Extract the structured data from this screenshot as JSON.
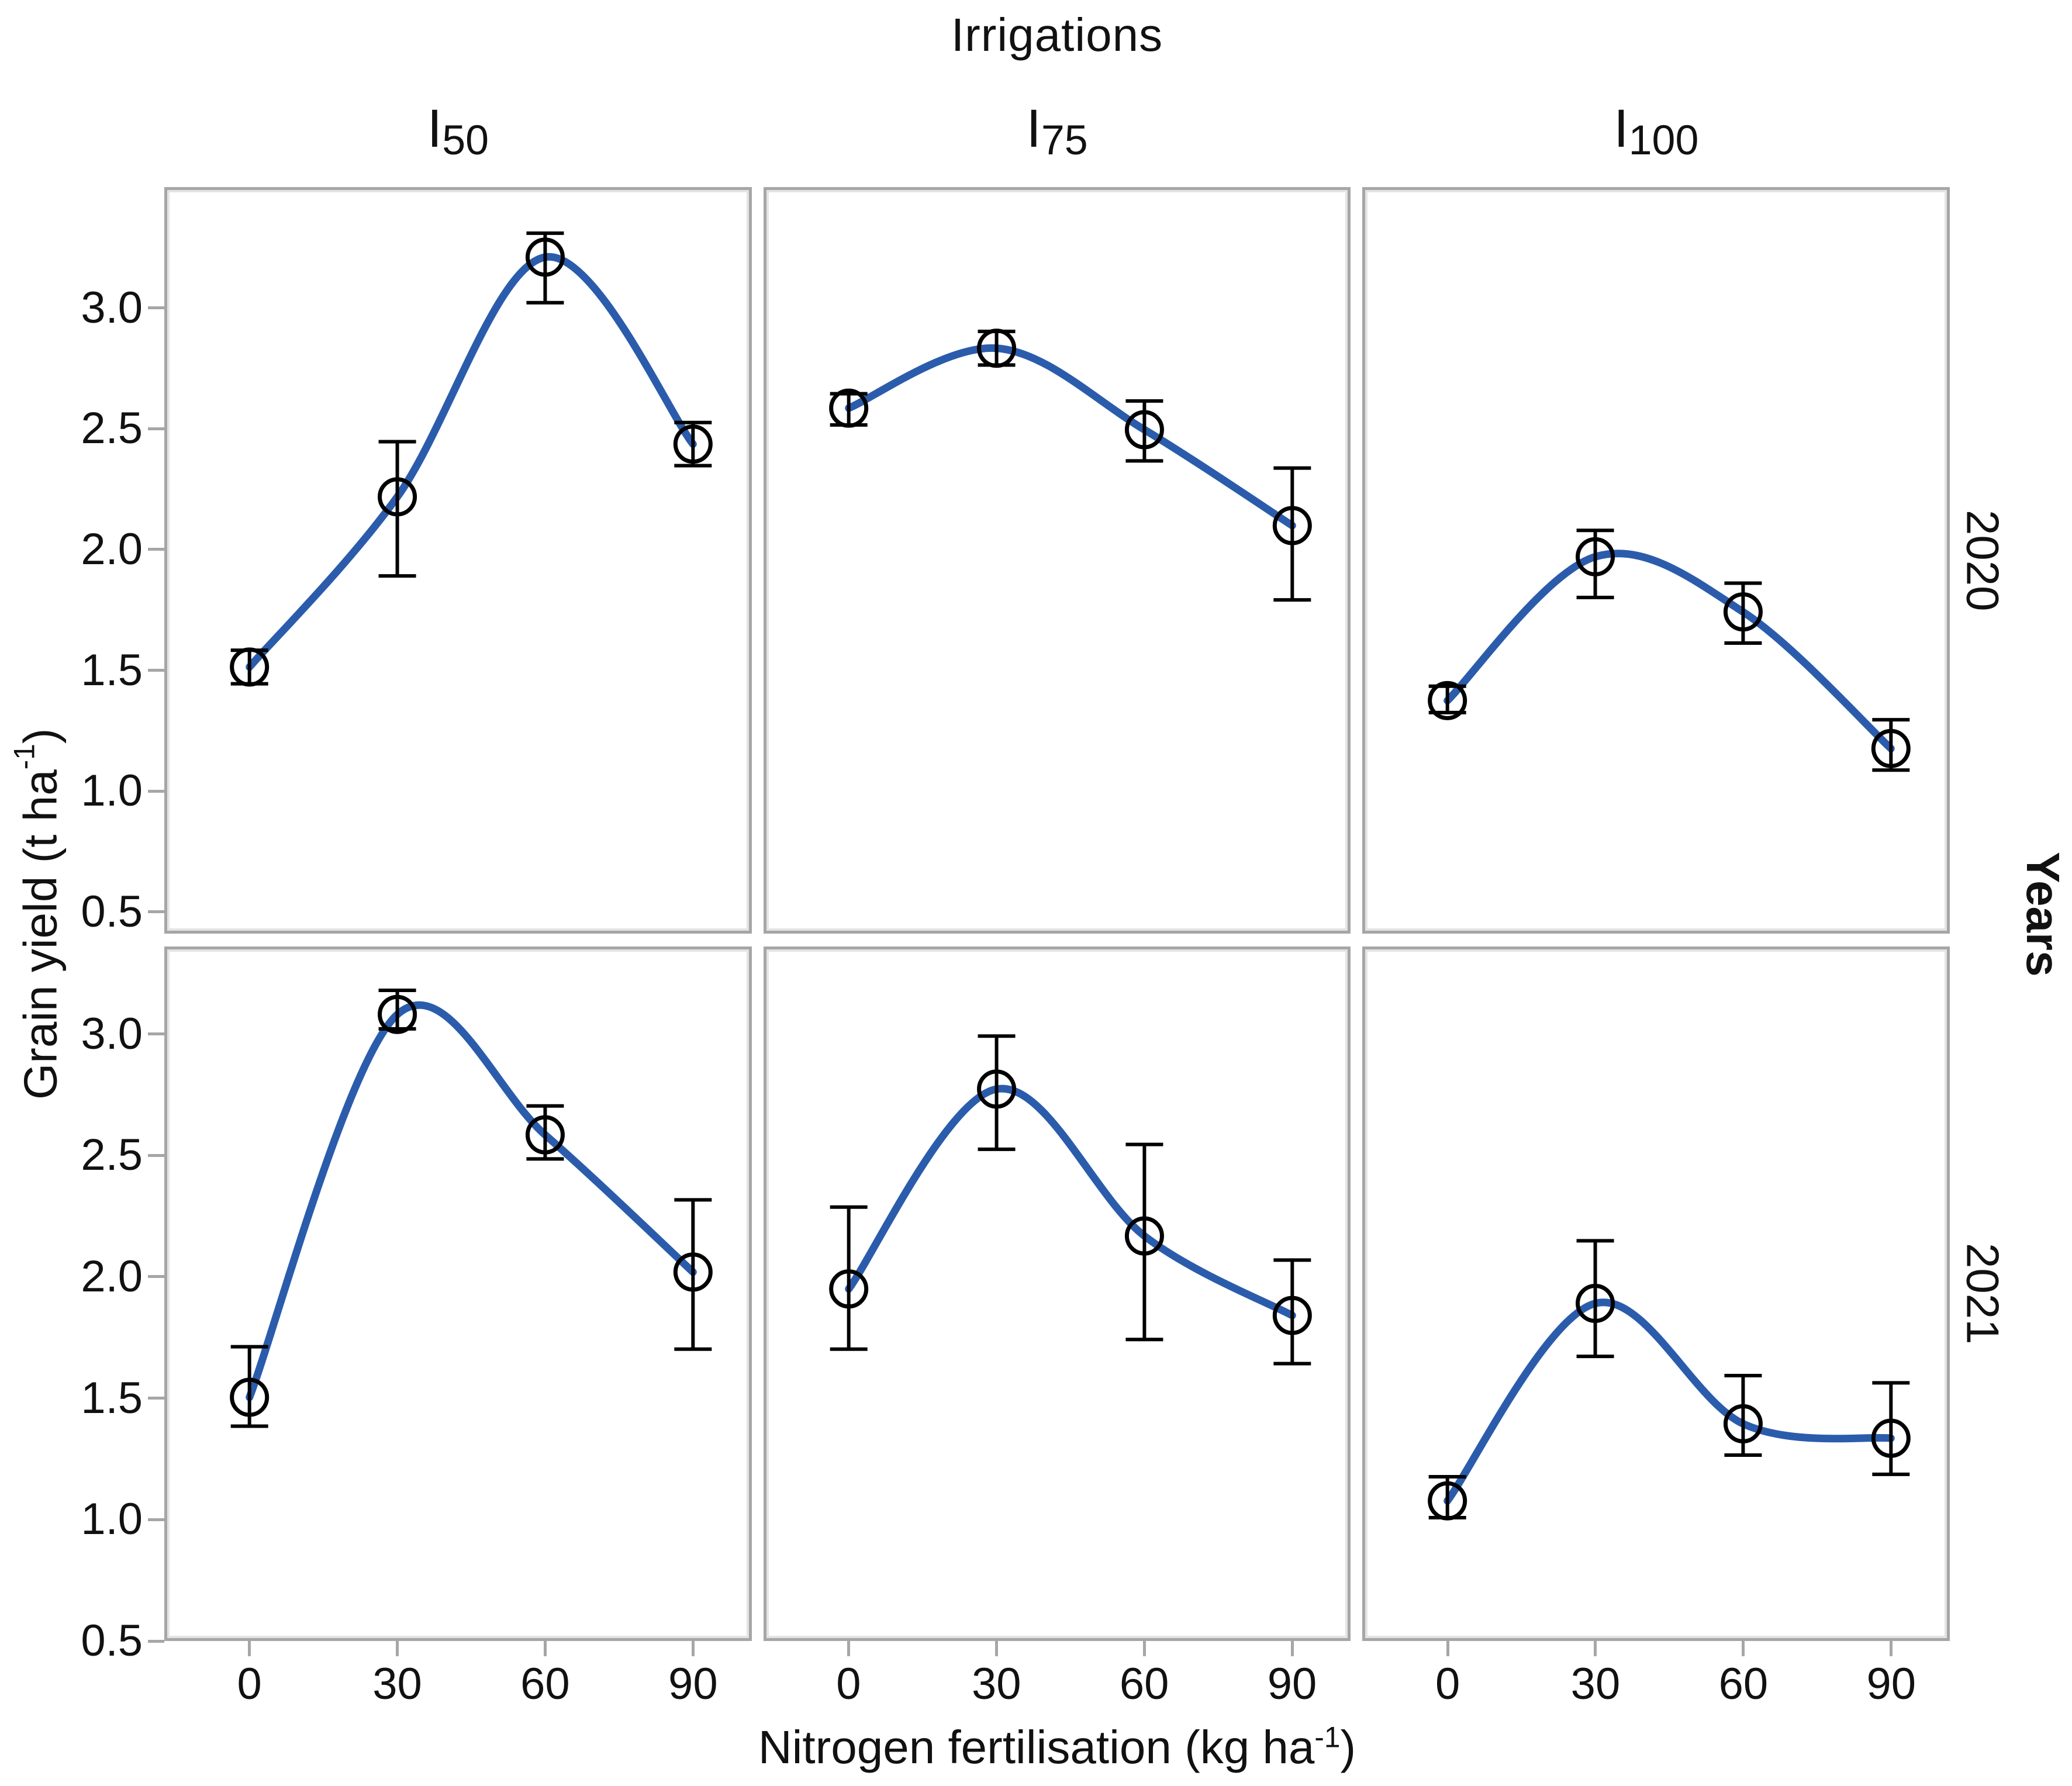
{
  "title": "Irrigations",
  "years_axis_label": "Years",
  "y_axis_title": {
    "base": "Grain yield (t ha",
    "sup": "-1",
    "close": ")"
  },
  "x_axis_title": {
    "base": "Nitrogen fertilisation (kg ha",
    "sup": "-1",
    "close": ")"
  },
  "colors": {
    "curve": "#2B5CAC",
    "marker": "#000000",
    "error_bar": "#000000",
    "panel_border": "#A6A6A6",
    "tick": "#A6A6A6",
    "text": "#111111"
  },
  "chart_data": {
    "type": "line",
    "title": "Irrigations",
    "xlabel": "Nitrogen fertilisation (kg ha-1)",
    "ylabel": "Grain yield (t ha-1)",
    "legend": "none",
    "grid_lines": "off",
    "marker_style": "open-circle",
    "error_bars": true,
    "x": [
      0,
      30,
      60,
      90
    ],
    "x_tick_labels": [
      "0",
      "30",
      "60",
      "90"
    ],
    "y_tick_labels": [
      "3.0",
      "2.5",
      "2.0",
      "1.5",
      "1.0",
      "0.5"
    ],
    "y_tick_values": [
      3.0,
      2.5,
      2.0,
      1.5,
      1.0,
      0.5
    ],
    "facet_cols": [
      {
        "id": "I50",
        "prefix": "I",
        "sub": "50"
      },
      {
        "id": "I75",
        "prefix": "I",
        "sub": "75"
      },
      {
        "id": "I100",
        "prefix": "I",
        "sub": "100"
      }
    ],
    "facet_rows": [
      {
        "year": "2020",
        "ylim": [
          0.41,
          3.5
        ]
      },
      {
        "year": "2021",
        "ylim": [
          0.5,
          3.36
        ]
      }
    ],
    "series": [
      {
        "row": "2020",
        "col": "I50",
        "y": [
          1.51,
          2.22,
          3.22,
          2.44
        ],
        "err_low": [
          1.44,
          1.89,
          3.03,
          2.35
        ],
        "err_high": [
          1.58,
          2.45,
          3.32,
          2.53
        ]
      },
      {
        "row": "2020",
        "col": "I75",
        "y": [
          2.59,
          2.84,
          2.5,
          2.1
        ],
        "err_low": [
          2.52,
          2.77,
          2.37,
          1.79
        ],
        "err_high": [
          2.65,
          2.91,
          2.62,
          2.34
        ]
      },
      {
        "row": "2020",
        "col": "I100",
        "y": [
          1.37,
          1.97,
          1.74,
          1.17
        ],
        "err_low": [
          1.32,
          1.8,
          1.61,
          1.08
        ],
        "err_high": [
          1.43,
          2.08,
          1.86,
          1.29
        ]
      },
      {
        "row": "2021",
        "col": "I50",
        "y": [
          1.5,
          3.09,
          2.59,
          2.02
        ],
        "err_low": [
          1.38,
          3.03,
          2.49,
          1.7
        ],
        "err_high": [
          1.71,
          3.19,
          2.71,
          2.32
        ]
      },
      {
        "row": "2021",
        "col": "I75",
        "y": [
          1.95,
          2.78,
          2.17,
          1.84
        ],
        "err_low": [
          1.7,
          2.53,
          1.74,
          1.64
        ],
        "err_high": [
          2.29,
          3.0,
          2.55,
          2.07
        ]
      },
      {
        "row": "2021",
        "col": "I100",
        "y": [
          1.07,
          1.89,
          1.39,
          1.33
        ],
        "err_low": [
          1.0,
          1.67,
          1.26,
          1.18
        ],
        "err_high": [
          1.17,
          2.15,
          1.59,
          1.56
        ]
      }
    ]
  }
}
